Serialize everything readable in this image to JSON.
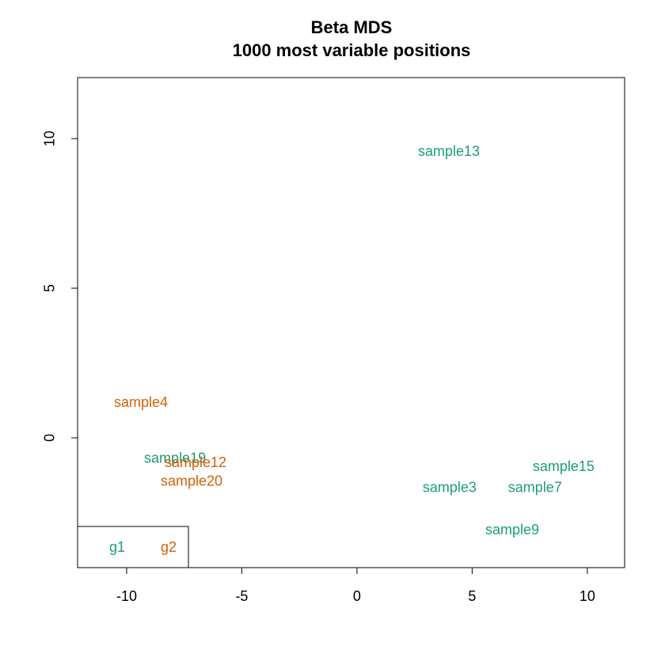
{
  "chart_data": {
    "type": "scatter",
    "title": "Beta MDS",
    "subtitle": "1000 most variable positions",
    "xlim": [
      -12.13,
      11.62
    ],
    "ylim": [
      -4.34,
      12.04
    ],
    "xticks": [
      -10,
      -5,
      0,
      5,
      10
    ],
    "yticks": [
      0,
      5,
      10
    ],
    "grid": false,
    "legend": "bottomleft",
    "legend_layout": "horizontal",
    "series": [
      {
        "name": "g1",
        "color": "#1b9e77",
        "labels": [
          "sample13",
          "sample19",
          "sample15",
          "sample3",
          "sample7",
          "sample9"
        ],
        "x": [
          3.99,
          -7.9,
          8.97,
          4.02,
          7.73,
          6.74
        ],
        "values": [
          9.55,
          -0.71,
          -0.98,
          -1.69,
          -1.69,
          -3.1
        ]
      },
      {
        "name": "g2",
        "color": "#d95f02",
        "labels": [
          "sample4",
          "sample12",
          "sample20"
        ],
        "x": [
          -9.38,
          -7.01,
          -7.18
        ],
        "values": [
          1.16,
          -0.85,
          -1.48
        ]
      }
    ]
  }
}
